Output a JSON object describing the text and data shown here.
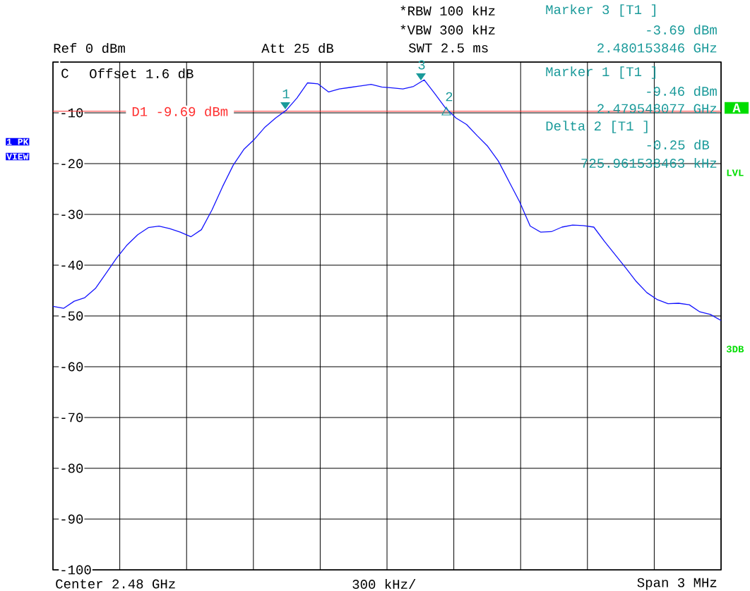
{
  "chart_data": {
    "type": "line",
    "categories": [
      null,
      null,
      null,
      null,
      null,
      null,
      null,
      null,
      null,
      null,
      null,
      null,
      null,
      null,
      null,
      null,
      null,
      null,
      null,
      null,
      null,
      null,
      null,
      null,
      null,
      null,
      null,
      null,
      null,
      null,
      null,
      null,
      null,
      null,
      null,
      null,
      null,
      null,
      null,
      null,
      null,
      null,
      null,
      null,
      null,
      null,
      null,
      null,
      null,
      null,
      null,
      null,
      null,
      null,
      null,
      null,
      null,
      null,
      null,
      null,
      null,
      null,
      null,
      null
    ],
    "series": [
      {
        "color": "#1414ff",
        "values": [
          -48.1,
          -48.5,
          -47.1,
          -46.4,
          -44.6,
          -41.6,
          -38.6,
          -36.0,
          -34.0,
          -32.6,
          -32.3,
          -32.8,
          -33.5,
          -34.4,
          -33.0,
          -29.1,
          -24.5,
          -20.3,
          -17.2,
          -15.2,
          -12.8,
          -11.0,
          -9.5,
          -7.1,
          -4.1,
          -4.3,
          -5.9,
          -5.3,
          -5.0,
          -4.7,
          -4.4,
          -4.9,
          -5.1,
          -5.3,
          -4.8,
          -3.5,
          -6.2,
          -9.0,
          -11.0,
          -12.3,
          -14.5,
          -16.6,
          -19.5,
          -23.5,
          -27.5,
          -32.3,
          -33.5,
          -33.4,
          -32.5,
          -32.1,
          -32.2,
          -32.5,
          -35.3,
          -37.9,
          -40.5,
          -43.2,
          -45.4,
          -46.8,
          -47.6,
          -47.5,
          -47.8,
          -49.2,
          -49.7,
          -50.9
        ]
      }
    ],
    "ylim": [
      -100,
      0
    ],
    "yticks": [
      {
        "value": 0,
        "label": null
      },
      -10,
      -20,
      -30,
      -40,
      -50,
      -60,
      -70,
      -80,
      -90,
      -100
    ],
    "grid": true,
    "ref_lines": [
      {
        "axis": "y",
        "value": -9.69,
        "label": "D1 -9.69 dBm",
        "color": "#ff3030"
      }
    ],
    "annotations": [
      "1",
      "2",
      "3",
      "Ref 0 dBm",
      "Att 25 dB",
      "*RBW 100 kHz",
      "*VBW 300 kHz",
      "SWT 2.5 ms",
      "Marker 3 [T1 ]",
      "-3.69 dBm",
      "2.480153846 GHz",
      "C",
      "Offset 1.6 dB",
      "Marker 1 [T1 ]",
      "-9.46 dBm",
      "2.479548077 GHz",
      "Delta 2 [T1 ]",
      "-0.25 dB",
      "725.961538463 kHz",
      "1 PK",
      "VIEW",
      "A",
      "LVL",
      "3DB",
      "Center 2.48 GHz",
      "300 kHz/",
      "Span 3 MHz"
    ]
  }
}
